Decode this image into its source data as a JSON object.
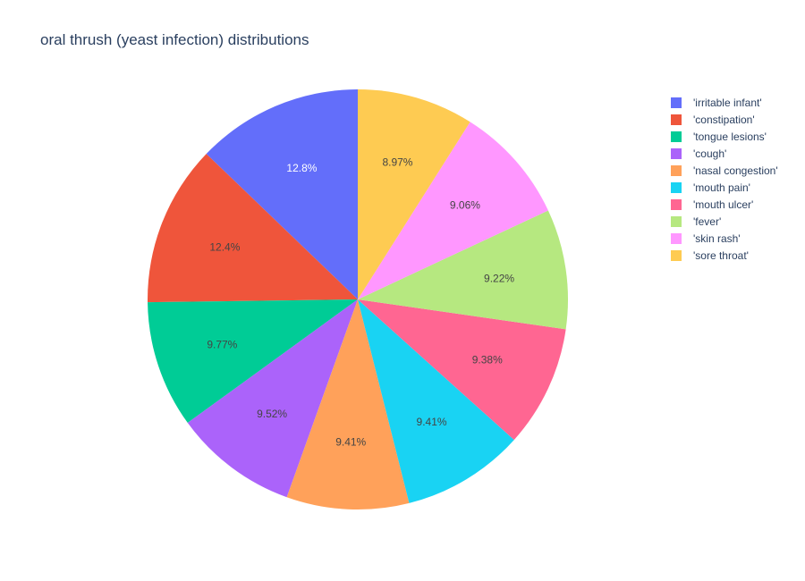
{
  "chart_data": {
    "type": "pie",
    "title": "oral thrush (yeast infection) distributions",
    "labels": [
      "'irritable infant'",
      "'constipation'",
      "'tongue lesions'",
      "'cough'",
      "'nasal congestion'",
      "'mouth pain'",
      "'mouth ulcer'",
      "'fever'",
      "'skin rash'",
      "'sore throat'"
    ],
    "values": [
      12.8,
      12.4,
      9.77,
      9.52,
      9.41,
      9.41,
      9.38,
      9.22,
      9.06,
      8.97
    ],
    "text_labels": [
      "12.8%",
      "12.4%",
      "9.77%",
      "9.52%",
      "9.41%",
      "9.41%",
      "9.38%",
      "9.22%",
      "9.06%",
      "8.97%"
    ],
    "colors": [
      "#636efa",
      "#EF553B",
      "#00cc96",
      "#ab63fa",
      "#FFA15A",
      "#19d3f3",
      "#FF6692",
      "#B6E880",
      "#FF97FF",
      "#FECB52"
    ],
    "label_colors": [
      "#ffffff",
      "#444444",
      "#444444",
      "#444444",
      "#444444",
      "#444444",
      "#444444",
      "#444444",
      "#444444",
      "#444444"
    ],
    "direction": "counterclockwise",
    "start_angle": "top",
    "legend_position": "top-right"
  }
}
